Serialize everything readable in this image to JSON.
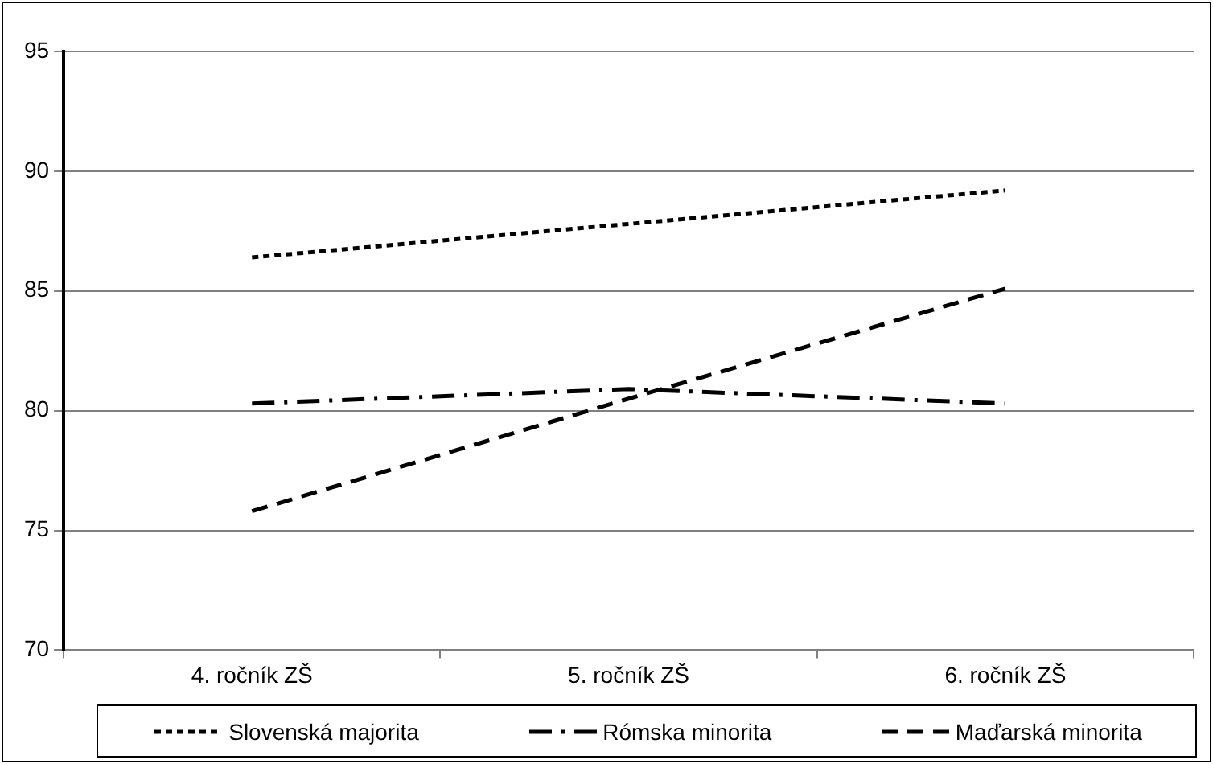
{
  "chart_data": {
    "type": "line",
    "categories": [
      "4. ročník ZŠ",
      "5. ročník ZŠ",
      "6. ročník ZŠ"
    ],
    "series": [
      {
        "name": "Slovenská majorita",
        "color": "#000000",
        "line_style": "dotted",
        "values": [
          86.4,
          87.8,
          89.2
        ]
      },
      {
        "name": "Rómska minorita",
        "color": "#000000",
        "line_style": "dashdot",
        "values": [
          80.3,
          80.9,
          80.3
        ]
      },
      {
        "name": "Maďarská minorita",
        "color": "#000000",
        "line_style": "dashed",
        "values": [
          75.8,
          80.5,
          85.1
        ]
      }
    ],
    "ylim": [
      70,
      95
    ],
    "yticks": [
      70,
      75,
      80,
      85,
      90,
      95
    ],
    "grid": "y",
    "legend": "bottom",
    "marker": "none"
  }
}
